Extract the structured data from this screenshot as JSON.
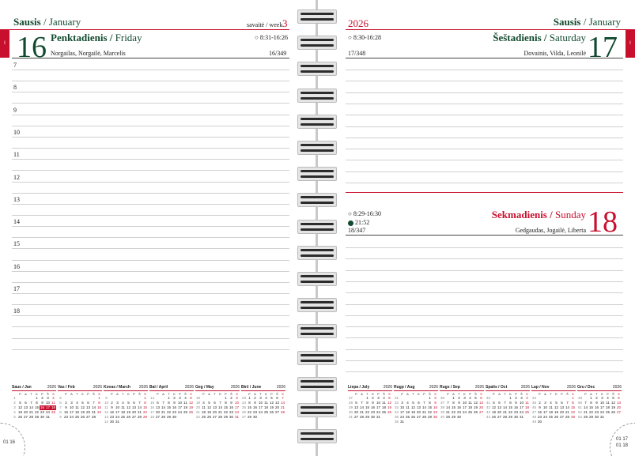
{
  "left": {
    "month_lt": "Sausis",
    "month_en": "January",
    "week_label": "savaitė / week",
    "week_no": "3",
    "tab_label": "I",
    "day_num": "16",
    "day_lt": "Penktadienis",
    "day_en": "Friday",
    "sun_times": "8:31-16:26",
    "names": "Norgailas, Norgailė, Marcelis",
    "day_of_year": "16/349",
    "hours": [
      "7",
      "8",
      "9",
      "10",
      "11",
      "12",
      "13",
      "14",
      "15",
      "16",
      "17",
      "18"
    ],
    "page_no": "01 16"
  },
  "right": {
    "year": "2026",
    "month_lt": "Sausis",
    "month_en": "January",
    "tab_label": "I",
    "sat_num": "17",
    "sat_lt": "Šeštadienis",
    "sat_en": "Saturday",
    "sat_sun_times": "8:30-16:28",
    "sat_names": "Dovainis, Vilda, Leonilė",
    "sat_doy": "17/348",
    "sun_num": "18",
    "sun_lt": "Sekmadienis",
    "sun_en": "Sunday",
    "sun_sun_times": "8:29-16:30",
    "moon_time": "21:52",
    "sun_names": "Gedgaudas, Jogailė, Liberta",
    "sun_doy": "18/347",
    "page_no_1": "01 17",
    "page_no_2": "01 18"
  },
  "weekday_letters": [
    "P",
    "A",
    "T",
    "K",
    "P",
    "Š",
    "S"
  ],
  "mini_calendars_left": [
    {
      "name": "Saus",
      "en": "Jan",
      "year": "2026",
      "weeks": [
        [
          "1",
          "",
          "",
          "",
          "1",
          "2",
          "3",
          "4"
        ],
        [
          "2",
          "5",
          "6",
          "7",
          "8",
          "9",
          "10",
          "11"
        ],
        [
          "3",
          "12",
          "13",
          "14",
          "15",
          "16",
          "17",
          "18"
        ],
        [
          "4",
          "19",
          "20",
          "21",
          "22",
          "23",
          "24",
          "25"
        ],
        [
          "5",
          "26",
          "27",
          "28",
          "29",
          "30",
          "31",
          ""
        ]
      ]
    },
    {
      "name": "Vas",
      "en": "Feb",
      "year": "2026",
      "weeks": [
        [
          "5",
          "",
          "",
          "",
          "",
          "",
          "",
          "1"
        ],
        [
          "6",
          "2",
          "3",
          "4",
          "5",
          "6",
          "7",
          "8"
        ],
        [
          "7",
          "9",
          "10",
          "11",
          "12",
          "13",
          "14",
          "15"
        ],
        [
          "8",
          "16",
          "17",
          "18",
          "19",
          "20",
          "21",
          "22"
        ],
        [
          "9",
          "23",
          "24",
          "25",
          "26",
          "27",
          "28",
          ""
        ]
      ]
    },
    {
      "name": "Kovas",
      "en": "March",
      "year": "2026",
      "weeks": [
        [
          "9",
          "",
          "",
          "",
          "",
          "",
          "",
          "1"
        ],
        [
          "10",
          "2",
          "3",
          "4",
          "5",
          "6",
          "7",
          "8"
        ],
        [
          "11",
          "9",
          "10",
          "11",
          "12",
          "13",
          "14",
          "15"
        ],
        [
          "12",
          "16",
          "17",
          "18",
          "19",
          "20",
          "21",
          "22"
        ],
        [
          "13",
          "23",
          "24",
          "25",
          "26",
          "27",
          "28",
          "29"
        ],
        [
          "14",
          "30",
          "31",
          "",
          "",
          "",
          "",
          ""
        ]
      ]
    },
    {
      "name": "Bal",
      "en": "April",
      "year": "2026",
      "weeks": [
        [
          "14",
          "",
          "",
          "1",
          "2",
          "3",
          "4",
          "5"
        ],
        [
          "15",
          "6",
          "7",
          "8",
          "9",
          "10",
          "11",
          "12"
        ],
        [
          "16",
          "13",
          "14",
          "15",
          "16",
          "17",
          "18",
          "19"
        ],
        [
          "17",
          "20",
          "21",
          "22",
          "23",
          "24",
          "25",
          "26"
        ],
        [
          "18",
          "27",
          "28",
          "29",
          "30",
          "",
          "",
          ""
        ]
      ]
    },
    {
      "name": "Geg",
      "en": "May",
      "year": "2026",
      "weeks": [
        [
          "18",
          "",
          "",
          "",
          "",
          "1",
          "2",
          "3"
        ],
        [
          "19",
          "4",
          "5",
          "6",
          "7",
          "8",
          "9",
          "10"
        ],
        [
          "20",
          "11",
          "12",
          "13",
          "14",
          "15",
          "16",
          "17"
        ],
        [
          "21",
          "18",
          "19",
          "20",
          "21",
          "22",
          "23",
          "24"
        ],
        [
          "22",
          "25",
          "26",
          "27",
          "28",
          "29",
          "30",
          "31"
        ]
      ]
    },
    {
      "name": "Birž",
      "en": "June",
      "year": "2026",
      "weeks": [
        [
          "23",
          "1",
          "2",
          "3",
          "4",
          "5",
          "6",
          "7"
        ],
        [
          "24",
          "8",
          "9",
          "10",
          "11",
          "12",
          "13",
          "14"
        ],
        [
          "25",
          "15",
          "16",
          "17",
          "18",
          "19",
          "20",
          "21"
        ],
        [
          "26",
          "22",
          "23",
          "24",
          "25",
          "26",
          "27",
          "28"
        ],
        [
          "27",
          "29",
          "30",
          "",
          "",
          "",
          "",
          ""
        ]
      ]
    }
  ],
  "mini_calendars_right": [
    {
      "name": "Liepa",
      "en": "July",
      "year": "2026",
      "weeks": [
        [
          "27",
          "",
          "",
          "1",
          "2",
          "3",
          "4",
          "5"
        ],
        [
          "28",
          "6",
          "7",
          "8",
          "9",
          "10",
          "11",
          "12"
        ],
        [
          "29",
          "13",
          "14",
          "15",
          "16",
          "17",
          "18",
          "19"
        ],
        [
          "30",
          "20",
          "21",
          "22",
          "23",
          "24",
          "25",
          "26"
        ],
        [
          "31",
          "27",
          "28",
          "29",
          "30",
          "31",
          "",
          ""
        ]
      ]
    },
    {
      "name": "Rugp",
      "en": "Aug",
      "year": "2026",
      "weeks": [
        [
          "31",
          "",
          "",
          "",
          "",
          "",
          "1",
          "2"
        ],
        [
          "32",
          "3",
          "4",
          "5",
          "6",
          "7",
          "8",
          "9"
        ],
        [
          "33",
          "10",
          "11",
          "12",
          "13",
          "14",
          "15",
          "16"
        ],
        [
          "34",
          "17",
          "18",
          "19",
          "20",
          "21",
          "22",
          "23"
        ],
        [
          "35",
          "24",
          "25",
          "26",
          "27",
          "28",
          "29",
          "30"
        ],
        [
          "36",
          "31",
          "",
          "",
          "",
          "",
          "",
          ""
        ]
      ]
    },
    {
      "name": "Rugs",
      "en": "Sep",
      "year": "2026",
      "weeks": [
        [
          "36",
          "",
          "1",
          "2",
          "3",
          "4",
          "5",
          "6"
        ],
        [
          "37",
          "7",
          "8",
          "9",
          "10",
          "11",
          "12",
          "13"
        ],
        [
          "38",
          "14",
          "15",
          "16",
          "17",
          "18",
          "19",
          "20"
        ],
        [
          "39",
          "21",
          "22",
          "23",
          "24",
          "25",
          "26",
          "27"
        ],
        [
          "40",
          "28",
          "29",
          "30",
          "",
          "",
          "",
          ""
        ]
      ]
    },
    {
      "name": "Spalis",
      "en": "Oct",
      "year": "2026",
      "weeks": [
        [
          "40",
          "",
          "",
          "",
          "1",
          "2",
          "3",
          "4"
        ],
        [
          "41",
          "5",
          "6",
          "7",
          "8",
          "9",
          "10",
          "11"
        ],
        [
          "42",
          "12",
          "13",
          "14",
          "15",
          "16",
          "17",
          "18"
        ],
        [
          "43",
          "19",
          "20",
          "21",
          "22",
          "23",
          "24",
          "25"
        ],
        [
          "44",
          "26",
          "27",
          "28",
          "29",
          "30",
          "31",
          ""
        ]
      ]
    },
    {
      "name": "Lap",
      "en": "Nov",
      "year": "2026",
      "weeks": [
        [
          "44",
          "",
          "",
          "",
          "",
          "",
          "",
          "1"
        ],
        [
          "45",
          "2",
          "3",
          "4",
          "5",
          "6",
          "7",
          "8"
        ],
        [
          "46",
          "9",
          "10",
          "11",
          "12",
          "13",
          "14",
          "15"
        ],
        [
          "47",
          "16",
          "17",
          "18",
          "19",
          "20",
          "21",
          "22"
        ],
        [
          "48",
          "23",
          "24",
          "25",
          "26",
          "27",
          "28",
          "29"
        ],
        [
          "49",
          "30",
          "",
          "",
          "",
          "",
          "",
          ""
        ]
      ]
    },
    {
      "name": "Gru",
      "en": "Dec",
      "year": "2026",
      "weeks": [
        [
          "49",
          "",
          "1",
          "2",
          "3",
          "4",
          "5",
          "6"
        ],
        [
          "50",
          "7",
          "8",
          "9",
          "10",
          "11",
          "12",
          "13"
        ],
        [
          "51",
          "14",
          "15",
          "16",
          "17",
          "18",
          "19",
          "20"
        ],
        [
          "52",
          "21",
          "22",
          "23",
          "24",
          "25",
          "26",
          "27"
        ],
        [
          "53",
          "28",
          "29",
          "30",
          "31",
          "",
          "",
          ""
        ]
      ]
    }
  ],
  "colors": {
    "accent_red": "#c8102e",
    "dark_green": "#114a2e",
    "line_gray": "#d0d0d0"
  }
}
